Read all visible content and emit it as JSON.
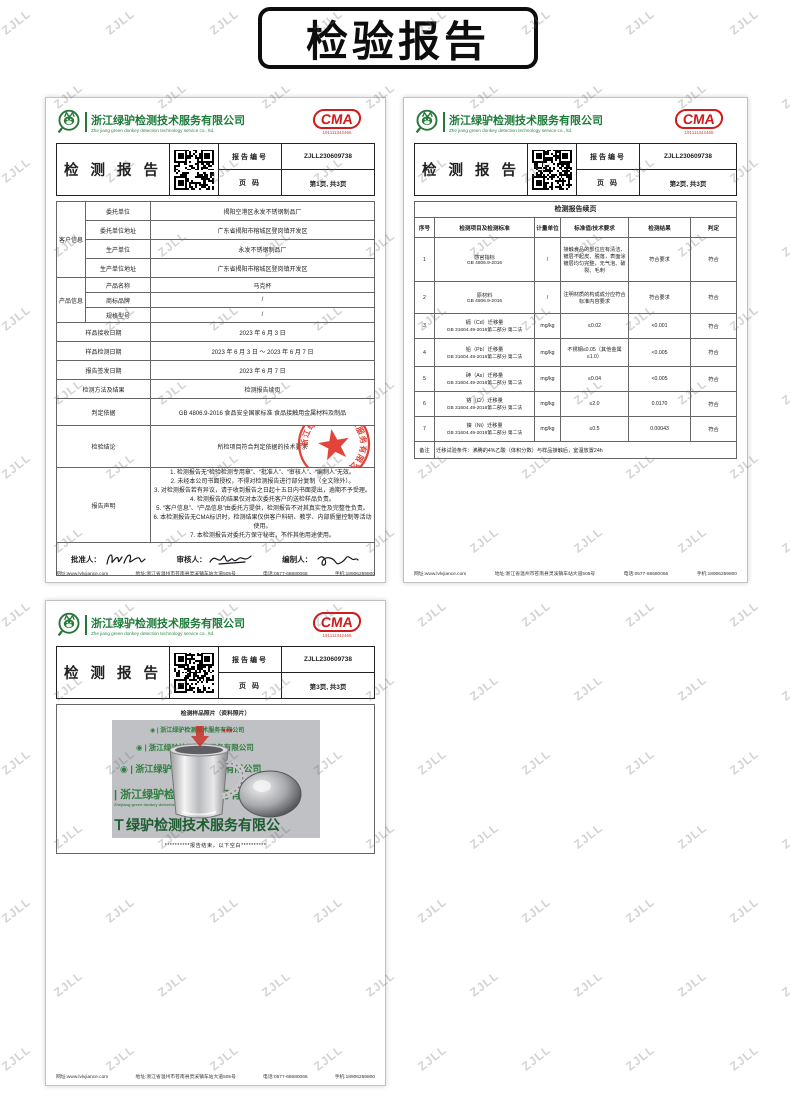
{
  "banner": {
    "title": "检验报告"
  },
  "company": {
    "name_cn": "浙江绿驴检测技术服务有限公司",
    "name_en": "Zhe jiang green donkey detection technology service co., ltd.",
    "cma_label": "CMA",
    "cma_number": "191111342465"
  },
  "header": {
    "doc_title": "检 测 报 告",
    "report_no_label": "报告编号",
    "report_no": "ZJLL230609738",
    "page_label": "页    码",
    "page1": "第1页, 共3页",
    "page2": "第2页, 共3页",
    "page3": "第3页, 共3页"
  },
  "page1": {
    "customer_group": "客户信息",
    "rows": {
      "client_label": "委托单位",
      "client": "揭阳空港区永发不锈钢制品厂",
      "client_addr_label": "委托单位地址",
      "client_addr": "广东省揭阳市榕城区登岗镇开发区",
      "producer_label": "生产单位",
      "producer": "永发不锈钢制品厂",
      "producer_addr_label": "生产单位地址",
      "producer_addr": "广东省揭阳市榕城区登岗镇开发区"
    },
    "product_group": "产品信息",
    "product": {
      "name_label": "产品名称",
      "name": "马克杯",
      "brand_label": "商标品牌",
      "brand": "/",
      "model_label": "规格型号",
      "model": "/"
    },
    "dates": {
      "received_label": "样品接收日期",
      "received": "2023 年 6 月 3 日",
      "tested_label": "样品检测日期",
      "tested": "2023 年 6 月 3 日 ～ 2023 年 6 月 7 日",
      "issued_label": "报告签发日期",
      "issued": "2023 年 6 月 7 日",
      "method_label": "检测方法及结果",
      "method": "检测报告续页"
    },
    "basis_label": "判定依据",
    "basis": "GB 4806.9-2016 食品安全国家标准 食品接触用金属材料及制品",
    "conclusion_label": "检验结论",
    "conclusion": "所检项目符合判定依据的技术要求",
    "statement_label": "报告声明",
    "statements": [
      "1. 检测报告无“检验检测专用章”、“批准人”、“审核人”、“编制人”无效。",
      "2. 未经本公司书面授权，不得对检测报告进行部分复制（全文除外）。",
      "3. 对检测报告若有异议，请于收到报告之日起十五日内书面提出，逾期不予受理。",
      "4. 检测报告的结果仅对本次委托客户的送检样品负责。",
      "5. “客户信息”、“产品信息”由委托方提供，检测报告不对其真实性及完整性负责。",
      "6. 本检测报告无CMA标识时，检测结果仅供客户科研、教学、内部质量控制等活动使用。",
      "7. 本检测报告对委托方保守秘密，不作其他用途使用。"
    ],
    "sig": {
      "approver_label": "批准人：",
      "reviewer_label": "审核人：",
      "compiler_label": "编制人："
    },
    "seal": {
      "ring_text": "浙江绿驴检测技术服务有限公司",
      "bottom_text": "检验检测专用章"
    }
  },
  "page2": {
    "title": "检测报告续页",
    "headers": {
      "no": "序号",
      "item": "检测项目及检测标准",
      "unit": "计量单位",
      "requirement": "标准值/技术要求",
      "result": "检测结果",
      "verdict": "判定"
    },
    "rows": [
      {
        "no": "1",
        "item": "感官指标",
        "method": "GB 4806.9-2016",
        "unit": "/",
        "requirement": "接触食品的部位应有清洁、镀层不起皮、脱落，表面涂镀层均匀完整，无气泡、破裂、毛刺",
        "result": "符合要求",
        "verdict": "符合"
      },
      {
        "no": "2",
        "item": "原材料",
        "method": "GB 4806.9-2016",
        "unit": "/",
        "requirement": "注明材质的构成成分应符合标准内容要求",
        "result": "符合要求",
        "verdict": "符合"
      },
      {
        "no": "3",
        "item": "镉（Cd）迁移量",
        "method": "GB 31604.49-2016第二部分 第二法",
        "unit": "mg/kg",
        "requirement": "≤0.02",
        "result": "<0.001",
        "verdict": "符合"
      },
      {
        "no": "4",
        "item": "铅（Pb）迁移量",
        "method": "GB 31604.49-2016第二部分 第二法",
        "unit": "mg/kg",
        "requirement": "不锈钢≤0.05（其他金属≤1.0）",
        "result": "<0.005",
        "verdict": "符合"
      },
      {
        "no": "5",
        "item": "砷（As）迁移量",
        "method": "GB 31604.49-2016第二部分 第二法",
        "unit": "mg/kg",
        "requirement": "≤0.04",
        "result": "<0.005",
        "verdict": "符合"
      },
      {
        "no": "6",
        "item": "铬（Cr）迁移量",
        "method": "GB 31604.49-2016第二部分 第二法",
        "unit": "mg/kg",
        "requirement": "≤2.0",
        "result": "0.0170",
        "verdict": "符合"
      },
      {
        "no": "7",
        "item": "镍（Ni）迁移量",
        "method": "GB 31604.49-2016第二部分 第二法",
        "unit": "mg/kg",
        "requirement": "≤0.5",
        "result": "0.00043",
        "verdict": "符合"
      }
    ],
    "remark_label": "备注",
    "remark": "迁移试验条件：沸腾的4%乙酸（体积分数）与样品接触后，室温放置24h"
  },
  "page3": {
    "photo_title": "检测样品照片（资料照片）",
    "end_line": "**********报告结束，以下空白**********"
  },
  "footer": {
    "website": "网址:www.lvlvjiance.com",
    "address": "地址:浙江省温州市苍南县灵溪镇车站大道505号",
    "phone": "电话:0577-68680066",
    "mobile": "手机:18906259800"
  },
  "watermark": "ZJLL"
}
